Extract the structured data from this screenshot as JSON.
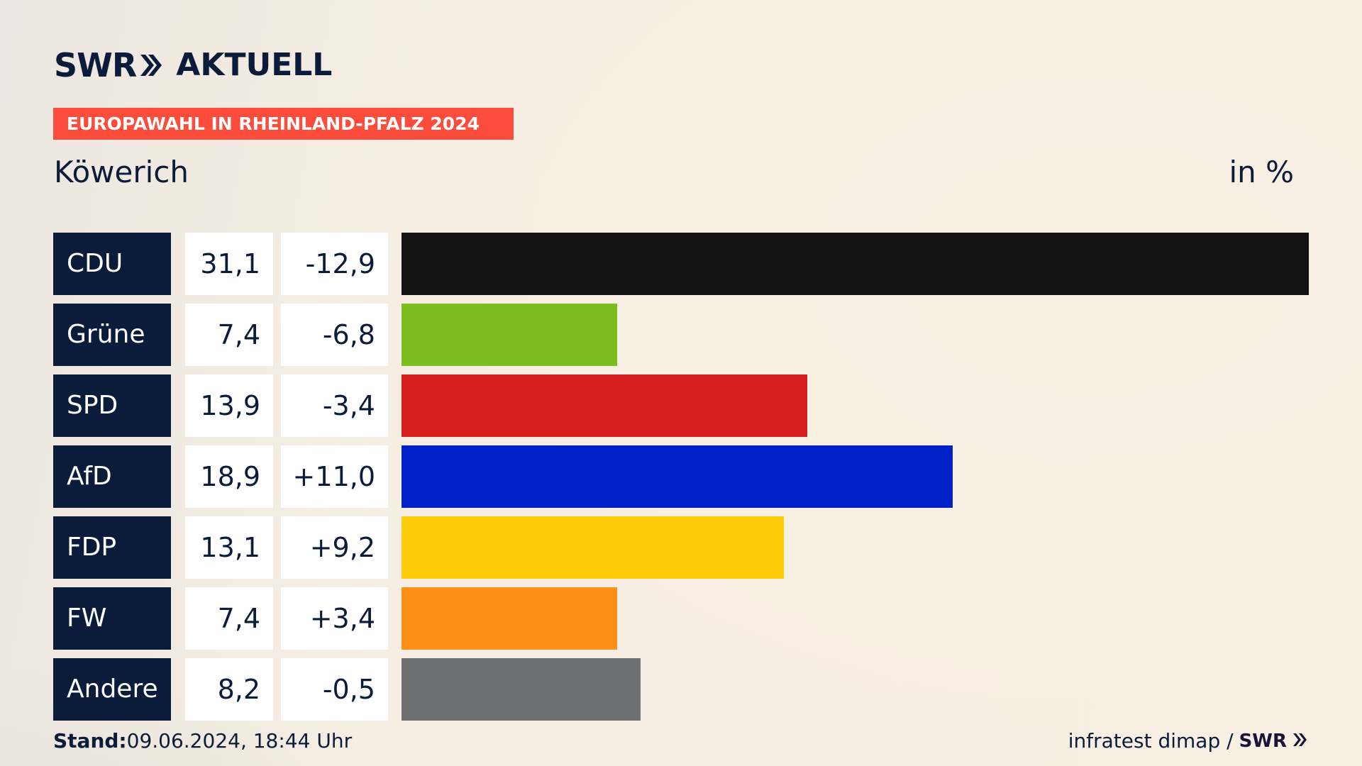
{
  "logo": {
    "brand": "SWR",
    "channel": "AKTUELL"
  },
  "banner": "EUROPAWAHL IN RHEINLAND-PFALZ 2024",
  "place": "Köwerich",
  "unit": "in %",
  "chart_data": {
    "type": "bar",
    "orientation": "horizontal",
    "categories": [
      "CDU",
      "Grüne",
      "SPD",
      "AfD",
      "FDP",
      "FW",
      "Andere"
    ],
    "series": [
      {
        "values": [
          31.1,
          7.4,
          13.9,
          18.9,
          13.1,
          7.4,
          8.2
        ],
        "value_labels": [
          "31,1",
          "7,4",
          "13,9",
          "18,9",
          "13,1",
          "7,4",
          "8,2"
        ]
      }
    ],
    "changes": [
      -12.9,
      -6.8,
      -3.4,
      11.0,
      9.2,
      3.4,
      -0.5
    ],
    "change_labels": [
      "-12,9",
      "-6,8",
      "-3,4",
      "+11,0",
      "+9,2",
      "+3,4",
      "-0,5"
    ],
    "colors": [
      "#121212",
      "#7abd1d",
      "#d41f1e",
      "#0020c8",
      "#fecd0a",
      "#fd8f19",
      "#6f7072"
    ],
    "xlim": [
      0,
      31.1
    ]
  },
  "footer": {
    "stand_label": "Stand:",
    "stand_value": "09.06.2024, 18:44 Uhr",
    "source": "infratest dimap /",
    "source_brand": "SWR"
  }
}
